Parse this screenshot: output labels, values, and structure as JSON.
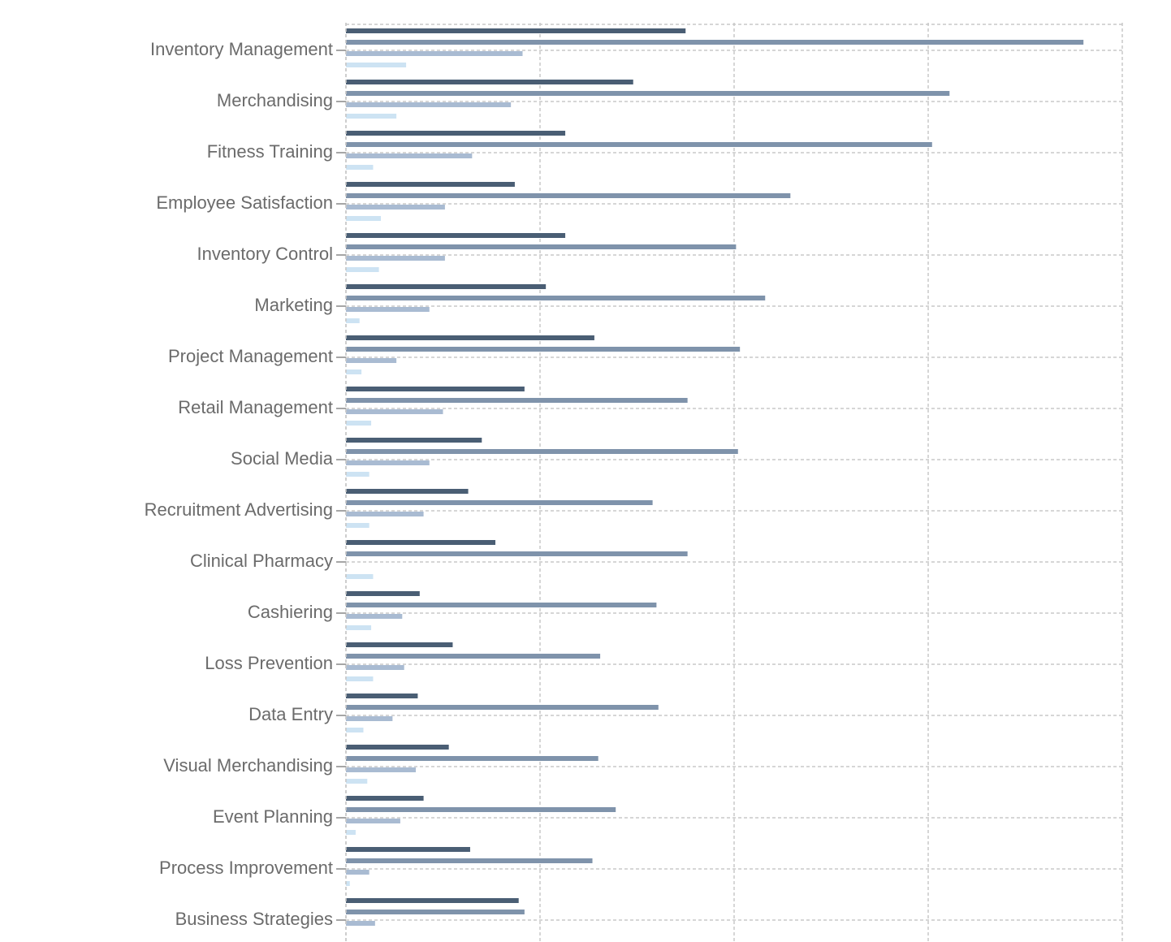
{
  "chart_data": {
    "type": "bar",
    "orientation": "horizontal",
    "categories": [
      "Inventory Management",
      "Merchandising",
      "Fitness Training",
      "Employee Satisfaction",
      "Inventory Control",
      "Marketing",
      "Project Management",
      "Retail Management",
      "Social Media",
      "Recruitment Advertising",
      "Clinical Pharmacy",
      "Cashiering",
      "Loss Prevention",
      "Data Entry",
      "Visual Merchandising",
      "Event Planning",
      "Process Improvement",
      "Business Strategies"
    ],
    "series": [
      {
        "color": "#4a5e74",
        "values": [
          175,
          148,
          113,
          87,
          113,
          103,
          128,
          92,
          70,
          63,
          77,
          38,
          55,
          37,
          53,
          40,
          64,
          89
        ]
      },
      {
        "color": "#7f93ab",
        "values": [
          380,
          311,
          302,
          229,
          201,
          216,
          203,
          176,
          202,
          158,
          176,
          160,
          131,
          161,
          130,
          139,
          127,
          92
        ]
      },
      {
        "color": "#a9bbd2",
        "values": [
          91,
          85,
          65,
          51,
          51,
          43,
          26,
          50,
          43,
          40,
          null,
          29,
          30,
          24,
          36,
          28,
          12,
          15
        ]
      },
      {
        "color": "#cde3f3",
        "values": [
          31,
          26,
          14,
          18,
          17,
          7,
          8,
          13,
          12,
          12,
          14,
          13,
          14,
          9,
          11,
          5,
          2,
          null
        ]
      }
    ],
    "xlim": [
      0,
      400
    ],
    "xticks": [
      0,
      100,
      200,
      300,
      400
    ],
    "grid": true
  }
}
